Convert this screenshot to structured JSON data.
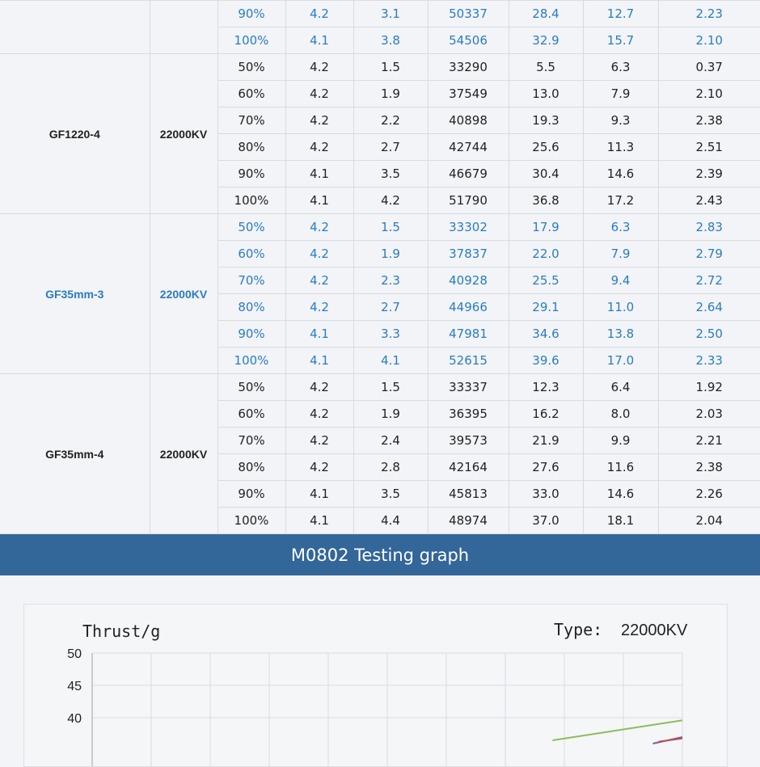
{
  "table": {
    "groups": [
      {
        "model": "",
        "kv": "",
        "style": "blue",
        "rows": [
          [
            "90%",
            "4.2",
            "3.1",
            "50337",
            "28.4",
            "12.7",
            "2.23"
          ],
          [
            "100%",
            "4.1",
            "3.8",
            "54506",
            "32.9",
            "15.7",
            "2.10"
          ]
        ]
      },
      {
        "model": "GF1220-4",
        "kv": "22000KV",
        "style": "black",
        "rows": [
          [
            "50%",
            "4.2",
            "1.5",
            "33290",
            "5.5",
            "6.3",
            "0.37"
          ],
          [
            "60%",
            "4.2",
            "1.9",
            "37549",
            "13.0",
            "7.9",
            "2.10"
          ],
          [
            "70%",
            "4.2",
            "2.2",
            "40898",
            "19.3",
            "9.3",
            "2.38"
          ],
          [
            "80%",
            "4.2",
            "2.7",
            "42744",
            "25.6",
            "11.3",
            "2.51"
          ],
          [
            "90%",
            "4.1",
            "3.5",
            "46679",
            "30.4",
            "14.6",
            "2.39"
          ],
          [
            "100%",
            "4.1",
            "4.2",
            "51790",
            "36.8",
            "17.2",
            "2.43"
          ]
        ]
      },
      {
        "model": "GF35mm-3",
        "kv": "22000KV",
        "style": "blue",
        "rows": [
          [
            "50%",
            "4.2",
            "1.5",
            "33302",
            "17.9",
            "6.3",
            "2.83"
          ],
          [
            "60%",
            "4.2",
            "1.9",
            "37837",
            "22.0",
            "7.9",
            "2.79"
          ],
          [
            "70%",
            "4.2",
            "2.3",
            "40928",
            "25.5",
            "9.4",
            "2.72"
          ],
          [
            "80%",
            "4.2",
            "2.7",
            "44966",
            "29.1",
            "11.0",
            "2.64"
          ],
          [
            "90%",
            "4.1",
            "3.3",
            "47981",
            "34.6",
            "13.8",
            "2.50"
          ],
          [
            "100%",
            "4.1",
            "4.1",
            "52615",
            "39.6",
            "17.0",
            "2.33"
          ]
        ]
      },
      {
        "model": "GF35mm-4",
        "kv": "22000KV",
        "style": "black",
        "rows": [
          [
            "50%",
            "4.2",
            "1.5",
            "33337",
            "12.3",
            "6.4",
            "1.92"
          ],
          [
            "60%",
            "4.2",
            "1.9",
            "36395",
            "16.2",
            "8.0",
            "2.03"
          ],
          [
            "70%",
            "4.2",
            "2.4",
            "39573",
            "21.9",
            "9.9",
            "2.21"
          ],
          [
            "80%",
            "4.2",
            "2.8",
            "42164",
            "27.6",
            "11.6",
            "2.38"
          ],
          [
            "90%",
            "4.1",
            "3.5",
            "45813",
            "33.0",
            "14.6",
            "2.26"
          ],
          [
            "100%",
            "4.1",
            "4.4",
            "48974",
            "37.0",
            "18.1",
            "2.04"
          ]
        ]
      }
    ]
  },
  "banner": {
    "title": "M0802 Testing graph"
  },
  "graph": {
    "ylabel": "Thrust/g",
    "type_label": "Type:",
    "type_value": "22000KV"
  },
  "chart_data": {
    "type": "line",
    "ylabel": "Thrust/g",
    "yticks": [
      50,
      45,
      40
    ],
    "ylim": [
      35,
      50
    ],
    "grid": true,
    "x_gridlines": 10,
    "series": [
      {
        "color": "#8fbc5a",
        "points": [
          [
            0.78,
            36.5
          ],
          [
            1.0,
            39.6
          ]
        ]
      },
      {
        "color": "#7a5aa8",
        "points": [
          [
            0.95,
            36.0
          ],
          [
            1.0,
            37.0
          ]
        ]
      },
      {
        "color": "#c0504d",
        "points": [
          [
            0.96,
            36.3
          ],
          [
            1.0,
            36.8
          ]
        ]
      }
    ],
    "colors": {
      "banner": "#336699",
      "blue_text": "#2c7bc2"
    }
  }
}
